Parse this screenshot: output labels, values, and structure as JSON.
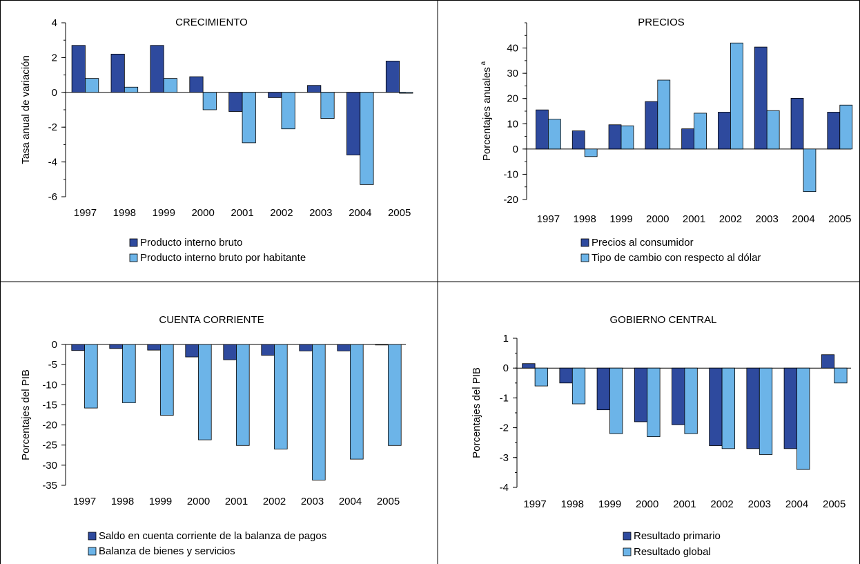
{
  "colors": {
    "dark": "#2E4A9E",
    "light": "#6CB4E8",
    "stroke": "#000000"
  },
  "chart_data": [
    {
      "id": "crecimiento",
      "type": "bar",
      "title": "CRECIMIENTO",
      "ylabel": "Tasa anual de variación",
      "ylabel_sup": "",
      "categories": [
        "1997",
        "1998",
        "1999",
        "2000",
        "2001",
        "2002",
        "2003",
        "2004",
        "2005"
      ],
      "ylim": [
        -6,
        4
      ],
      "yticks": [
        -6,
        -4,
        -2,
        0,
        2,
        4
      ],
      "yminor": 1,
      "series": [
        {
          "name": "Producto interno bruto",
          "color": "#2E4A9E",
          "values": [
            2.7,
            2.2,
            2.7,
            0.9,
            -1.1,
            -0.3,
            0.4,
            -3.6,
            1.8
          ]
        },
        {
          "name": "Producto interno bruto por habitante",
          "color": "#6CB4E8",
          "values": [
            0.8,
            0.3,
            0.8,
            -1.0,
            -2.9,
            -2.1,
            -1.5,
            -5.3,
            -0.05
          ]
        }
      ]
    },
    {
      "id": "precios",
      "type": "bar",
      "title": "PRECIOS",
      "ylabel": "Porcentajes anuales",
      "ylabel_sup": "a",
      "categories": [
        "1997",
        "1998",
        "1999",
        "2000",
        "2001",
        "2002",
        "2003",
        "2004",
        "2005"
      ],
      "ylim": [
        -20,
        50
      ],
      "yticks": [
        -20,
        -10,
        0,
        10,
        20,
        30,
        40
      ],
      "yminor": 5,
      "series": [
        {
          "name": "Precios al consumidor",
          "color": "#2E4A9E",
          "values": [
            15.5,
            7.2,
            9.6,
            18.8,
            8.0,
            14.6,
            40.4,
            20.1,
            14.6
          ]
        },
        {
          "name": "Tipo de cambio con respecto al dólar",
          "color": "#6CB4E8",
          "values": [
            11.8,
            -3.0,
            9.2,
            27.3,
            14.2,
            42.0,
            15.2,
            -16.9,
            17.4
          ]
        }
      ]
    },
    {
      "id": "cuenta-corriente",
      "type": "bar",
      "title": "CUENTA CORRIENTE",
      "ylabel": "Porcentajes del PIB",
      "ylabel_sup": "",
      "categories": [
        "1997",
        "1998",
        "1999",
        "2000",
        "2001",
        "2002",
        "2003",
        "2004",
        "2005"
      ],
      "ylim": [
        -35,
        0
      ],
      "yticks": [
        -35,
        -30,
        -25,
        -20,
        -15,
        -10,
        -5,
        0
      ],
      "yminor": 0,
      "series": [
        {
          "name": "Saldo en cuenta corriente de la balanza de pagos",
          "color": "#2E4A9E",
          "values": [
            -1.5,
            -1.0,
            -1.4,
            -3.1,
            -3.8,
            -2.7,
            -1.6,
            -1.6,
            -0.1
          ]
        },
        {
          "name": "Balanza de bienes y servicios",
          "color": "#6CB4E8",
          "values": [
            -15.8,
            -14.5,
            -17.6,
            -23.7,
            -25.1,
            -26.0,
            -33.7,
            -28.5,
            -25.1
          ]
        }
      ]
    },
    {
      "id": "gobierno-central",
      "type": "bar",
      "title": "GOBIERNO CENTRAL",
      "ylabel": "Porcentajes del PIB",
      "ylabel_sup": "",
      "categories": [
        "1997",
        "1998",
        "1999",
        "2000",
        "2001",
        "2002",
        "2003",
        "2004",
        "2005"
      ],
      "ylim": [
        -4,
        1
      ],
      "yticks": [
        -4,
        -3,
        -2,
        -1,
        0,
        1
      ],
      "yminor": 0.5,
      "series": [
        {
          "name": "Resultado primario",
          "color": "#2E4A9E",
          "values": [
            0.15,
            -0.5,
            -1.4,
            -1.8,
            -1.9,
            -2.6,
            -2.7,
            -2.7,
            0.45
          ]
        },
        {
          "name": "Resultado global",
          "color": "#6CB4E8",
          "values": [
            -0.6,
            -1.2,
            -2.2,
            -2.3,
            -2.2,
            -2.7,
            -2.9,
            -3.4,
            -0.5
          ]
        }
      ]
    }
  ]
}
